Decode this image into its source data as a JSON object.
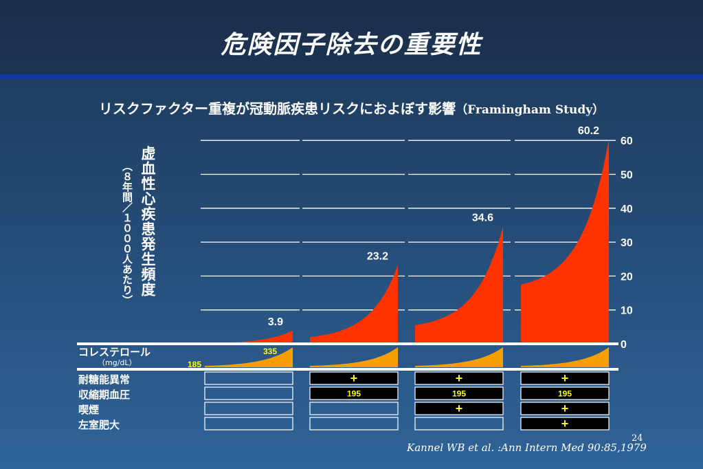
{
  "title": "危険因子除去の重要性",
  "subtitle_jp": "リスクファクター重複が冠動脈疾患リスクにおよぼす影響",
  "subtitle_en": "（Framingham Study）",
  "ylabel": "虚血性心疾患発生頻度",
  "ylabel_sub": "（８年間／１０００人あたり）",
  "cholesterol_label": "コレステロール",
  "cholesterol_unit": "（mg/dL）",
  "factor_labels": [
    "耐糖能異常",
    "収縮期血圧",
    "喫煙",
    "左室肥大"
  ],
  "reference": "Kannel WB et al. :Ann Intern Med 90:85,1979",
  "page_number": "24",
  "colors": {
    "risk_fill": "#ff3300",
    "chol_fill": "#f5a000",
    "yellow_text": "#ffff00",
    "box_active": "#000000"
  },
  "chart_data": {
    "type": "area",
    "ylim": [
      0,
      60
    ],
    "yticks": [
      0,
      10,
      20,
      30,
      40,
      50,
      60
    ],
    "groups": [
      {
        "peak": 3.9,
        "start": 0.15,
        "label": "3.9",
        "chol_min": "185",
        "chol_max": "335",
        "factors": {
          "glucose": "",
          "sbp": "",
          "smoking": "",
          "lvh": ""
        }
      },
      {
        "peak": 23.2,
        "start": 2.0,
        "label": "23.2",
        "factors": {
          "glucose": "+",
          "sbp": "195",
          "smoking": "",
          "lvh": ""
        }
      },
      {
        "peak": 34.6,
        "start": 5.5,
        "label": "34.6",
        "factors": {
          "glucose": "+",
          "sbp": "195",
          "smoking": "+",
          "lvh": ""
        }
      },
      {
        "peak": 60.2,
        "start": 17.5,
        "label": "60.2",
        "factors": {
          "glucose": "+",
          "sbp": "195",
          "smoking": "+",
          "lvh": "+"
        }
      }
    ]
  }
}
